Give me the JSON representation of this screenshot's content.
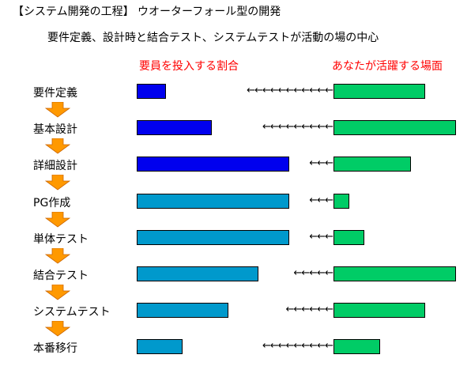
{
  "title": "【システム開発の工程】 ウオーターフォール型の開発",
  "subtitle": "要件定義、設計時と結合テスト、システムテストが活動の場の中心",
  "legend": {
    "left": "要員を投入する割合",
    "right": "あなたが活躍する場面"
  },
  "colors": {
    "dark_blue": "#0000ee",
    "light_blue": "#0099cc",
    "green": "#00cc66",
    "down_arrow": "#ff9900",
    "legend_text": "#ff0000"
  },
  "phases": [
    {
      "label": "要件定義",
      "staff_share": 0.19,
      "staff_color": "dark_blue",
      "engineer_share": 0.75,
      "arrows": "←←←←←←←←←←←"
    },
    {
      "label": "基本設計",
      "staff_share": 0.49,
      "staff_color": "dark_blue",
      "engineer_share": 1.0,
      "arrows": "←←←←←←←←←"
    },
    {
      "label": "詳細設計",
      "staff_share": 1.0,
      "staff_color": "dark_blue",
      "engineer_share": 0.63,
      "arrows": "←←←"
    },
    {
      "label": "PG作成",
      "staff_share": 1.0,
      "staff_color": "light_blue",
      "engineer_share": 0.13,
      "arrows": "←←←"
    },
    {
      "label": "単体テスト",
      "staff_share": 1.0,
      "staff_color": "light_blue",
      "engineer_share": 0.25,
      "arrows": "←←←"
    },
    {
      "label": "結合テスト",
      "staff_share": 0.8,
      "staff_color": "light_blue",
      "engineer_share": 1.0,
      "arrows": "←←←←←"
    },
    {
      "label": "システムテスト",
      "staff_share": 0.6,
      "staff_color": "light_blue",
      "engineer_share": 0.75,
      "arrows": "←←←←←←"
    },
    {
      "label": "本番移行",
      "staff_share": 0.3,
      "staff_color": "light_blue",
      "engineer_share": 0.38,
      "arrows": "←←←←←←←←←"
    }
  ]
}
